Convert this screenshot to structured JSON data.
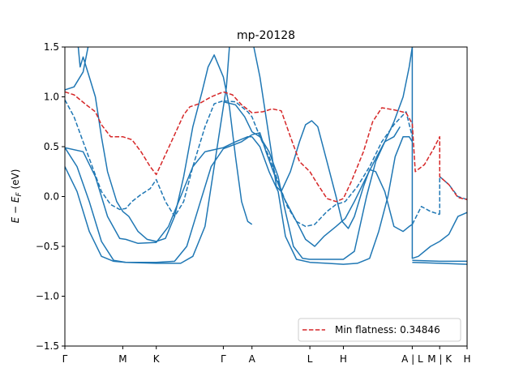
{
  "chart_data": {
    "type": "line",
    "title": "mp-20128",
    "ylabel": "E − E_F (eV)",
    "ylabel_main": "E",
    "ylabel_minus": " − ",
    "ylabel_E2": "E",
    "ylabel_sub": "F",
    "ylabel_unit": " (eV)",
    "xlabel": "",
    "xlim": [
      0,
      6.6
    ],
    "ylim": [
      -1.5,
      1.5
    ],
    "yticks": [
      -1.5,
      -1.0,
      -0.5,
      0.0,
      0.5,
      1.0,
      1.5
    ],
    "ytick_labels": [
      "−1.5",
      "−1.0",
      "−0.5",
      "0.0",
      "0.5",
      "1.0",
      "1.5"
    ],
    "xticks": [
      {
        "x": 0.0,
        "label": "Γ"
      },
      {
        "x": 0.95,
        "label": "M"
      },
      {
        "x": 1.5,
        "label": "K"
      },
      {
        "x": 2.6,
        "label": "Γ"
      },
      {
        "x": 3.07,
        "label": "A"
      },
      {
        "x": 4.02,
        "label": "L"
      },
      {
        "x": 4.57,
        "label": "H"
      },
      {
        "x": 5.7,
        "label": "A | L"
      },
      {
        "x": 6.15,
        "label": "M | K"
      },
      {
        "x": 6.6,
        "label": "H"
      }
    ],
    "grid": false,
    "legend": {
      "position": "lower-right",
      "entries": [
        {
          "name": "Min flatness: 0.34846",
          "color": "#d62728",
          "dash": true
        }
      ]
    },
    "colors": {
      "bands": "#1f77b4",
      "flat": "#d62728"
    },
    "series": [
      {
        "style": "solid",
        "color": "#1f77b4",
        "points": [
          [
            0,
            0.49
          ],
          [
            0.3,
            0.45
          ],
          [
            0.5,
            0.2
          ],
          [
            0.7,
            -0.2
          ],
          [
            0.9,
            -0.42
          ],
          [
            1.0,
            -0.43
          ],
          [
            1.2,
            -0.47
          ],
          [
            1.5,
            -0.46
          ],
          [
            1.7,
            -0.3
          ],
          [
            1.9,
            0.0
          ],
          [
            2.1,
            0.3
          ],
          [
            2.3,
            0.45
          ],
          [
            2.6,
            0.49
          ],
          [
            2.8,
            0.55
          ],
          [
            3.0,
            0.6
          ],
          [
            3.07,
            0.6
          ]
        ]
      },
      {
        "style": "solid",
        "color": "#1f77b4",
        "points": [
          [
            0,
            0.49
          ],
          [
            0.2,
            0.3
          ],
          [
            0.4,
            -0.05
          ],
          [
            0.6,
            -0.45
          ],
          [
            0.8,
            -0.64
          ],
          [
            1.0,
            -0.66
          ],
          [
            1.5,
            -0.66
          ],
          [
            1.8,
            -0.65
          ],
          [
            2.0,
            -0.5
          ],
          [
            2.2,
            -0.1
          ],
          [
            2.4,
            0.3
          ],
          [
            2.6,
            0.48
          ],
          [
            2.9,
            0.55
          ],
          [
            3.07,
            0.62
          ]
        ]
      },
      {
        "style": "solid",
        "color": "#1f77b4",
        "points": [
          [
            0,
            0.3
          ],
          [
            0.2,
            0.05
          ],
          [
            0.4,
            -0.35
          ],
          [
            0.6,
            -0.6
          ],
          [
            0.8,
            -0.65
          ],
          [
            1.0,
            -0.66
          ],
          [
            1.5,
            -0.67
          ],
          [
            1.9,
            -0.67
          ],
          [
            2.1,
            -0.6
          ],
          [
            2.3,
            -0.3
          ],
          [
            2.5,
            0.5
          ],
          [
            2.65,
            1.1
          ],
          [
            2.7,
            1.5
          ]
        ]
      },
      {
        "style": "solid",
        "color": "#1f77b4",
        "points": [
          [
            0,
            1.07
          ],
          [
            0.15,
            1.1
          ],
          [
            0.3,
            1.25
          ],
          [
            0.38,
            1.5
          ]
        ]
      },
      {
        "style": "solid",
        "color": "#1f77b4",
        "points": [
          [
            0.22,
            1.5
          ],
          [
            0.25,
            1.3
          ],
          [
            0.3,
            1.4
          ],
          [
            0.4,
            1.2
          ],
          [
            0.5,
            1.0
          ],
          [
            0.6,
            0.6
          ],
          [
            0.7,
            0.25
          ],
          [
            0.85,
            -0.05
          ],
          [
            0.95,
            -0.15
          ],
          [
            1.05,
            -0.2
          ],
          [
            1.2,
            -0.35
          ],
          [
            1.35,
            -0.43
          ],
          [
            1.5,
            -0.45
          ],
          [
            1.65,
            -0.42
          ],
          [
            1.8,
            -0.2
          ],
          [
            1.95,
            0.2
          ],
          [
            2.1,
            0.7
          ],
          [
            2.25,
            1.05
          ],
          [
            2.35,
            1.3
          ],
          [
            2.45,
            1.42
          ],
          [
            2.6,
            1.2
          ],
          [
            2.7,
            0.9
          ],
          [
            2.8,
            0.4
          ],
          [
            2.9,
            -0.05
          ],
          [
            3.0,
            -0.25
          ],
          [
            3.07,
            -0.28
          ]
        ]
      },
      {
        "style": "solid",
        "color": "#1f77b4",
        "points": [
          [
            2.6,
            0.95
          ],
          [
            2.8,
            0.92
          ],
          [
            2.95,
            0.8
          ],
          [
            3.07,
            0.65
          ],
          [
            3.2,
            0.6
          ],
          [
            3.35,
            0.45
          ],
          [
            3.5,
            0.2
          ],
          [
            3.6,
            -0.1
          ],
          [
            3.75,
            -0.5
          ],
          [
            3.9,
            -0.62
          ],
          [
            4.02,
            -0.63
          ],
          [
            4.3,
            -0.63
          ],
          [
            4.57,
            -0.63
          ],
          [
            4.75,
            -0.55
          ],
          [
            4.95,
            0.0
          ],
          [
            5.1,
            0.35
          ],
          [
            5.25,
            0.55
          ],
          [
            5.4,
            0.6
          ],
          [
            5.5,
            0.7
          ]
        ]
      },
      {
        "style": "solid",
        "color": "#1f77b4",
        "points": [
          [
            3.07,
            0.6
          ],
          [
            3.2,
            0.5
          ],
          [
            3.35,
            0.25
          ],
          [
            3.5,
            0.05
          ],
          [
            3.62,
            -0.4
          ],
          [
            3.8,
            -0.63
          ],
          [
            4.02,
            -0.66
          ],
          [
            4.3,
            -0.67
          ],
          [
            4.57,
            -0.68
          ],
          [
            4.8,
            -0.67
          ],
          [
            5.0,
            -0.62
          ],
          [
            5.15,
            -0.35
          ],
          [
            5.3,
            0.0
          ],
          [
            5.42,
            0.4
          ],
          [
            5.55,
            0.6
          ],
          [
            5.65,
            0.6
          ],
          [
            5.7,
            0.55
          ]
        ]
      },
      {
        "style": "solid",
        "color": "#1f77b4",
        "points": [
          [
            3.1,
            1.5
          ],
          [
            3.2,
            1.2
          ],
          [
            3.3,
            0.8
          ],
          [
            3.4,
            0.4
          ],
          [
            3.47,
            0.1
          ],
          [
            3.55,
            0.05
          ],
          [
            3.7,
            0.25
          ],
          [
            3.85,
            0.55
          ],
          [
            3.95,
            0.72
          ],
          [
            4.05,
            0.76
          ],
          [
            4.15,
            0.7
          ],
          [
            4.3,
            0.35
          ],
          [
            4.45,
            0.0
          ],
          [
            4.55,
            -0.25
          ],
          [
            4.65,
            -0.32
          ],
          [
            4.75,
            -0.2
          ],
          [
            4.9,
            0.1
          ],
          [
            5.0,
            0.27
          ],
          [
            5.1,
            0.25
          ],
          [
            5.25,
            0.05
          ],
          [
            5.4,
            -0.3
          ],
          [
            5.55,
            -0.35
          ],
          [
            5.65,
            -0.3
          ],
          [
            5.7,
            -0.28
          ]
        ]
      },
      {
        "style": "solid",
        "color": "#1f77b4",
        "points": [
          [
            3.07,
            0.62
          ],
          [
            3.2,
            0.64
          ],
          [
            3.3,
            0.45
          ],
          [
            3.45,
            0.2
          ],
          [
            3.6,
            -0.02
          ],
          [
            3.8,
            -0.25
          ],
          [
            3.95,
            -0.43
          ],
          [
            4.1,
            -0.5
          ],
          [
            4.25,
            -0.4
          ],
          [
            4.45,
            -0.3
          ],
          [
            4.6,
            -0.22
          ],
          [
            4.75,
            -0.05
          ],
          [
            4.95,
            0.2
          ],
          [
            5.1,
            0.38
          ],
          [
            5.25,
            0.55
          ],
          [
            5.4,
            0.75
          ],
          [
            5.55,
            1.0
          ],
          [
            5.65,
            1.3
          ],
          [
            5.7,
            1.5
          ]
        ]
      },
      {
        "style": "solid",
        "color": "#1f77b4",
        "points": [
          [
            5.7,
            1.5
          ],
          [
            5.7,
            -0.62
          ],
          [
            5.8,
            -0.6
          ],
          [
            6.0,
            -0.5
          ],
          [
            6.15,
            -0.45
          ]
        ]
      },
      {
        "style": "solid",
        "color": "#1f77b4",
        "points": [
          [
            5.7,
            -0.64
          ],
          [
            6.15,
            -0.65
          ],
          [
            6.6,
            -0.65
          ]
        ]
      },
      {
        "style": "solid",
        "color": "#1f77b4",
        "points": [
          [
            6.15,
            -0.45
          ],
          [
            6.3,
            -0.38
          ],
          [
            6.45,
            -0.2
          ],
          [
            6.6,
            -0.16
          ]
        ]
      },
      {
        "style": "solid",
        "color": "#1f77b4",
        "points": [
          [
            5.7,
            -0.66
          ],
          [
            6.15,
            -0.67
          ],
          [
            6.6,
            -0.68
          ]
        ]
      },
      {
        "style": "dashed",
        "color": "#1f77b4",
        "points": [
          [
            0,
            0.97
          ],
          [
            0.15,
            0.8
          ],
          [
            0.3,
            0.55
          ],
          [
            0.45,
            0.3
          ],
          [
            0.6,
            0.05
          ],
          [
            0.75,
            -0.08
          ],
          [
            0.9,
            -0.13
          ],
          [
            1.0,
            -0.12
          ],
          [
            1.1,
            -0.05
          ],
          [
            1.25,
            0.02
          ],
          [
            1.4,
            0.08
          ],
          [
            1.5,
            0.17
          ],
          [
            1.65,
            -0.05
          ],
          [
            1.8,
            -0.2
          ],
          [
            1.95,
            -0.05
          ],
          [
            2.1,
            0.3
          ],
          [
            2.3,
            0.7
          ],
          [
            2.45,
            0.93
          ],
          [
            2.6,
            0.96
          ],
          [
            2.8,
            0.95
          ],
          [
            3.0,
            0.85
          ],
          [
            3.07,
            0.8
          ],
          [
            3.2,
            0.6
          ],
          [
            3.35,
            0.4
          ],
          [
            3.5,
            0.15
          ],
          [
            3.65,
            -0.1
          ],
          [
            3.8,
            -0.25
          ],
          [
            3.95,
            -0.3
          ],
          [
            4.1,
            -0.28
          ],
          [
            4.3,
            -0.15
          ],
          [
            4.45,
            -0.08
          ],
          [
            4.6,
            -0.05
          ],
          [
            4.8,
            0.1
          ],
          [
            5.0,
            0.3
          ],
          [
            5.2,
            0.55
          ],
          [
            5.4,
            0.72
          ],
          [
            5.6,
            0.85
          ],
          [
            5.7,
            0.6
          ]
        ]
      },
      {
        "style": "dashed",
        "color": "#1f77b4",
        "points": [
          [
            5.7,
            -0.28
          ],
          [
            5.85,
            -0.1
          ],
          [
            6.0,
            -0.15
          ],
          [
            6.15,
            -0.18
          ]
        ]
      },
      {
        "style": "dashed",
        "color": "#1f77b4",
        "points": [
          [
            6.15,
            -0.18
          ],
          [
            6.15,
            0.2
          ],
          [
            6.3,
            0.12
          ],
          [
            6.45,
            0.0
          ],
          [
            6.6,
            -0.03
          ]
        ]
      },
      {
        "style": "dashed",
        "color": "#d62728",
        "name": "Min flatness: 0.34846",
        "points": [
          [
            0,
            1.05
          ],
          [
            0.15,
            1.02
          ],
          [
            0.35,
            0.92
          ],
          [
            0.5,
            0.85
          ],
          [
            0.6,
            0.72
          ],
          [
            0.75,
            0.6
          ],
          [
            0.95,
            0.6
          ],
          [
            1.1,
            0.57
          ],
          [
            1.25,
            0.45
          ],
          [
            1.4,
            0.3
          ],
          [
            1.5,
            0.22
          ],
          [
            1.65,
            0.42
          ],
          [
            1.8,
            0.62
          ],
          [
            1.95,
            0.82
          ],
          [
            2.05,
            0.9
          ],
          [
            2.2,
            0.93
          ],
          [
            2.4,
            1.0
          ],
          [
            2.6,
            1.05
          ],
          [
            2.75,
            1.02
          ],
          [
            2.9,
            0.92
          ],
          [
            3.07,
            0.84
          ],
          [
            3.25,
            0.85
          ],
          [
            3.4,
            0.88
          ],
          [
            3.55,
            0.86
          ],
          [
            3.7,
            0.6
          ],
          [
            3.85,
            0.35
          ],
          [
            4.02,
            0.25
          ],
          [
            4.15,
            0.12
          ],
          [
            4.3,
            -0.02
          ],
          [
            4.45,
            -0.05
          ],
          [
            4.57,
            -0.02
          ],
          [
            4.7,
            0.15
          ],
          [
            4.9,
            0.45
          ],
          [
            5.05,
            0.75
          ],
          [
            5.2,
            0.89
          ],
          [
            5.4,
            0.87
          ],
          [
            5.6,
            0.84
          ],
          [
            5.7,
            0.73
          ],
          [
            5.75,
            0.25
          ],
          [
            5.9,
            0.32
          ],
          [
            6.05,
            0.48
          ],
          [
            6.15,
            0.6
          ],
          [
            6.15,
            0.2
          ],
          [
            6.3,
            0.12
          ],
          [
            6.45,
            -0.01
          ],
          [
            6.6,
            -0.03
          ]
        ]
      }
    ]
  }
}
